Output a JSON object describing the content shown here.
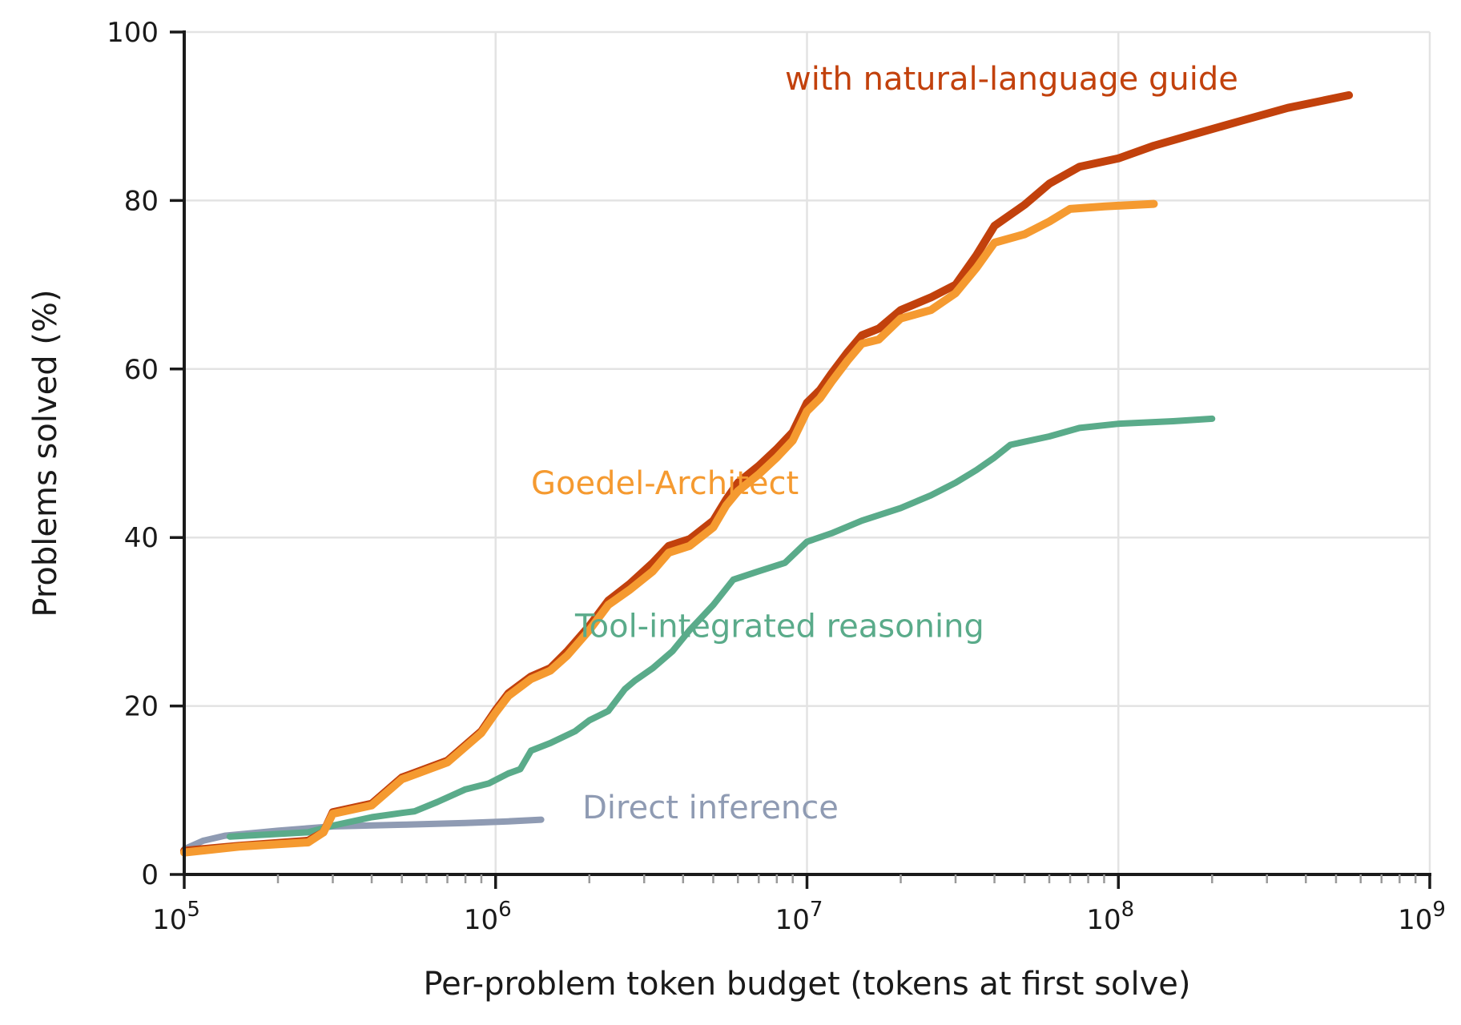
{
  "chart_data": {
    "type": "line",
    "title": "",
    "xlabel": "Per-problem token budget (tokens at first solve)",
    "ylabel": "Problems solved (%)",
    "xscale": "log",
    "xlim": [
      100000,
      1000000000
    ],
    "ylim": [
      0,
      100
    ],
    "grid": true,
    "x_ticks": [
      {
        "value": 100000,
        "base": "10",
        "exp": "5"
      },
      {
        "value": 1000000,
        "base": "10",
        "exp": "6"
      },
      {
        "value": 10000000,
        "base": "10",
        "exp": "7"
      },
      {
        "value": 100000000,
        "base": "10",
        "exp": "8"
      },
      {
        "value": 1000000000,
        "base": "10",
        "exp": "9"
      }
    ],
    "y_ticks": [
      0,
      20,
      40,
      60,
      80,
      100
    ],
    "series": [
      {
        "name": "Direct inference",
        "color": "#8f9bb3",
        "points": [
          [
            100000,
            3.0
          ],
          [
            115000,
            4.0
          ],
          [
            135000,
            4.6
          ],
          [
            200000,
            5.2
          ],
          [
            300000,
            5.7
          ],
          [
            500000,
            5.9
          ],
          [
            800000,
            6.1
          ],
          [
            1100000,
            6.3
          ],
          [
            1400000,
            6.5
          ]
        ]
      },
      {
        "name": "Tool-integrated reasoning",
        "color": "#5aab8a",
        "points": [
          [
            140000,
            4.5
          ],
          [
            250000,
            5.0
          ],
          [
            300000,
            5.8
          ],
          [
            400000,
            6.8
          ],
          [
            500000,
            7.3
          ],
          [
            550000,
            7.5
          ],
          [
            650000,
            8.6
          ],
          [
            800000,
            10.1
          ],
          [
            950000,
            10.8
          ],
          [
            1100000,
            12.0
          ],
          [
            1200000,
            12.5
          ],
          [
            1300000,
            14.7
          ],
          [
            1500000,
            15.6
          ],
          [
            1800000,
            17.0
          ],
          [
            2000000,
            18.3
          ],
          [
            2300000,
            19.4
          ],
          [
            2600000,
            22.0
          ],
          [
            2800000,
            23.0
          ],
          [
            3200000,
            24.5
          ],
          [
            3700000,
            26.5
          ],
          [
            4200000,
            29.0
          ],
          [
            5000000,
            32.0
          ],
          [
            5800000,
            35.0
          ],
          [
            7000000,
            36.0
          ],
          [
            8500000,
            37.0
          ],
          [
            10000000,
            39.5
          ],
          [
            12000000,
            40.5
          ],
          [
            15000000,
            42.0
          ],
          [
            20000000,
            43.5
          ],
          [
            25000000,
            45.0
          ],
          [
            30000000,
            46.5
          ],
          [
            35000000,
            48.0
          ],
          [
            40000000,
            49.5
          ],
          [
            45000000,
            51.0
          ],
          [
            60000000,
            52.0
          ],
          [
            75000000,
            53.0
          ],
          [
            100000000,
            53.5
          ],
          [
            150000000,
            53.8
          ],
          [
            200000000,
            54.1
          ]
        ]
      },
      {
        "name": "with natural-language guide",
        "color": "#c2410c",
        "points": [
          [
            100000,
            2.8
          ],
          [
            150000,
            3.4
          ],
          [
            250000,
            4.0
          ],
          [
            280000,
            5.0
          ],
          [
            300000,
            7.4
          ],
          [
            400000,
            8.4
          ],
          [
            500000,
            11.5
          ],
          [
            700000,
            13.5
          ],
          [
            900000,
            17.0
          ],
          [
            1000000,
            19.5
          ],
          [
            1100000,
            21.5
          ],
          [
            1300000,
            23.5
          ],
          [
            1500000,
            24.5
          ],
          [
            1700000,
            26.5
          ],
          [
            2000000,
            29.5
          ],
          [
            2300000,
            32.5
          ],
          [
            2700000,
            34.5
          ],
          [
            3200000,
            37.0
          ],
          [
            3600000,
            39.0
          ],
          [
            4200000,
            39.8
          ],
          [
            5000000,
            42.0
          ],
          [
            5500000,
            44.5
          ],
          [
            6000000,
            46.5
          ],
          [
            7000000,
            48.5
          ],
          [
            8000000,
            50.5
          ],
          [
            9000000,
            52.5
          ],
          [
            10000000,
            56.0
          ],
          [
            11000000,
            57.5
          ],
          [
            12000000,
            59.5
          ],
          [
            13500000,
            62.0
          ],
          [
            15000000,
            64.0
          ],
          [
            17000000,
            64.8
          ],
          [
            20000000,
            67.0
          ],
          [
            25000000,
            68.5
          ],
          [
            30000000,
            70.0
          ],
          [
            35000000,
            73.5
          ],
          [
            40000000,
            77.0
          ],
          [
            50000000,
            79.5
          ],
          [
            60000000,
            82.0
          ],
          [
            75000000,
            84.0
          ],
          [
            100000000,
            85.0
          ],
          [
            130000000,
            86.5
          ],
          [
            180000000,
            88.0
          ],
          [
            250000000,
            89.5
          ],
          [
            350000000,
            91.0
          ],
          [
            550000000,
            92.5
          ]
        ]
      },
      {
        "name": "Goedel-Architect",
        "color": "#f59a30",
        "points": [
          [
            100000,
            2.6
          ],
          [
            150000,
            3.3
          ],
          [
            250000,
            3.8
          ],
          [
            280000,
            5.0
          ],
          [
            300000,
            7.2
          ],
          [
            400000,
            8.2
          ],
          [
            500000,
            11.3
          ],
          [
            700000,
            13.3
          ],
          [
            900000,
            16.8
          ],
          [
            1000000,
            19.2
          ],
          [
            1100000,
            21.2
          ],
          [
            1300000,
            23.2
          ],
          [
            1500000,
            24.2
          ],
          [
            1700000,
            26.0
          ],
          [
            2000000,
            29.0
          ],
          [
            2300000,
            32.0
          ],
          [
            2700000,
            33.8
          ],
          [
            3200000,
            36.0
          ],
          [
            3600000,
            38.2
          ],
          [
            4200000,
            39.0
          ],
          [
            5000000,
            41.2
          ],
          [
            5500000,
            43.8
          ],
          [
            6000000,
            45.5
          ],
          [
            7000000,
            47.5
          ],
          [
            8000000,
            49.5
          ],
          [
            9000000,
            51.5
          ],
          [
            10000000,
            55.0
          ],
          [
            11000000,
            56.5
          ],
          [
            12000000,
            58.5
          ],
          [
            13500000,
            61.0
          ],
          [
            15000000,
            63.0
          ],
          [
            17000000,
            63.5
          ],
          [
            20000000,
            66.0
          ],
          [
            25000000,
            67.0
          ],
          [
            30000000,
            69.0
          ],
          [
            35000000,
            72.0
          ],
          [
            40000000,
            75.0
          ],
          [
            50000000,
            76.0
          ],
          [
            60000000,
            77.5
          ],
          [
            70000000,
            79.0
          ],
          [
            90000000,
            79.3
          ],
          [
            130000000,
            79.6
          ]
        ]
      }
    ],
    "annotations": [
      {
        "text": "with natural-language guide",
        "x": 8500000,
        "y": 94.5,
        "color": "#c2410c"
      },
      {
        "text": "Goedel-Architect",
        "x": 1300000,
        "y": 46.5,
        "color": "#f59a30"
      },
      {
        "text": "Tool-integrated reasoning",
        "x": 1800000,
        "y": 29.5,
        "color": "#5aab8a"
      },
      {
        "text": "Direct inference",
        "x": 1900000,
        "y": 8.0,
        "color": "#8f9bb3"
      }
    ]
  }
}
